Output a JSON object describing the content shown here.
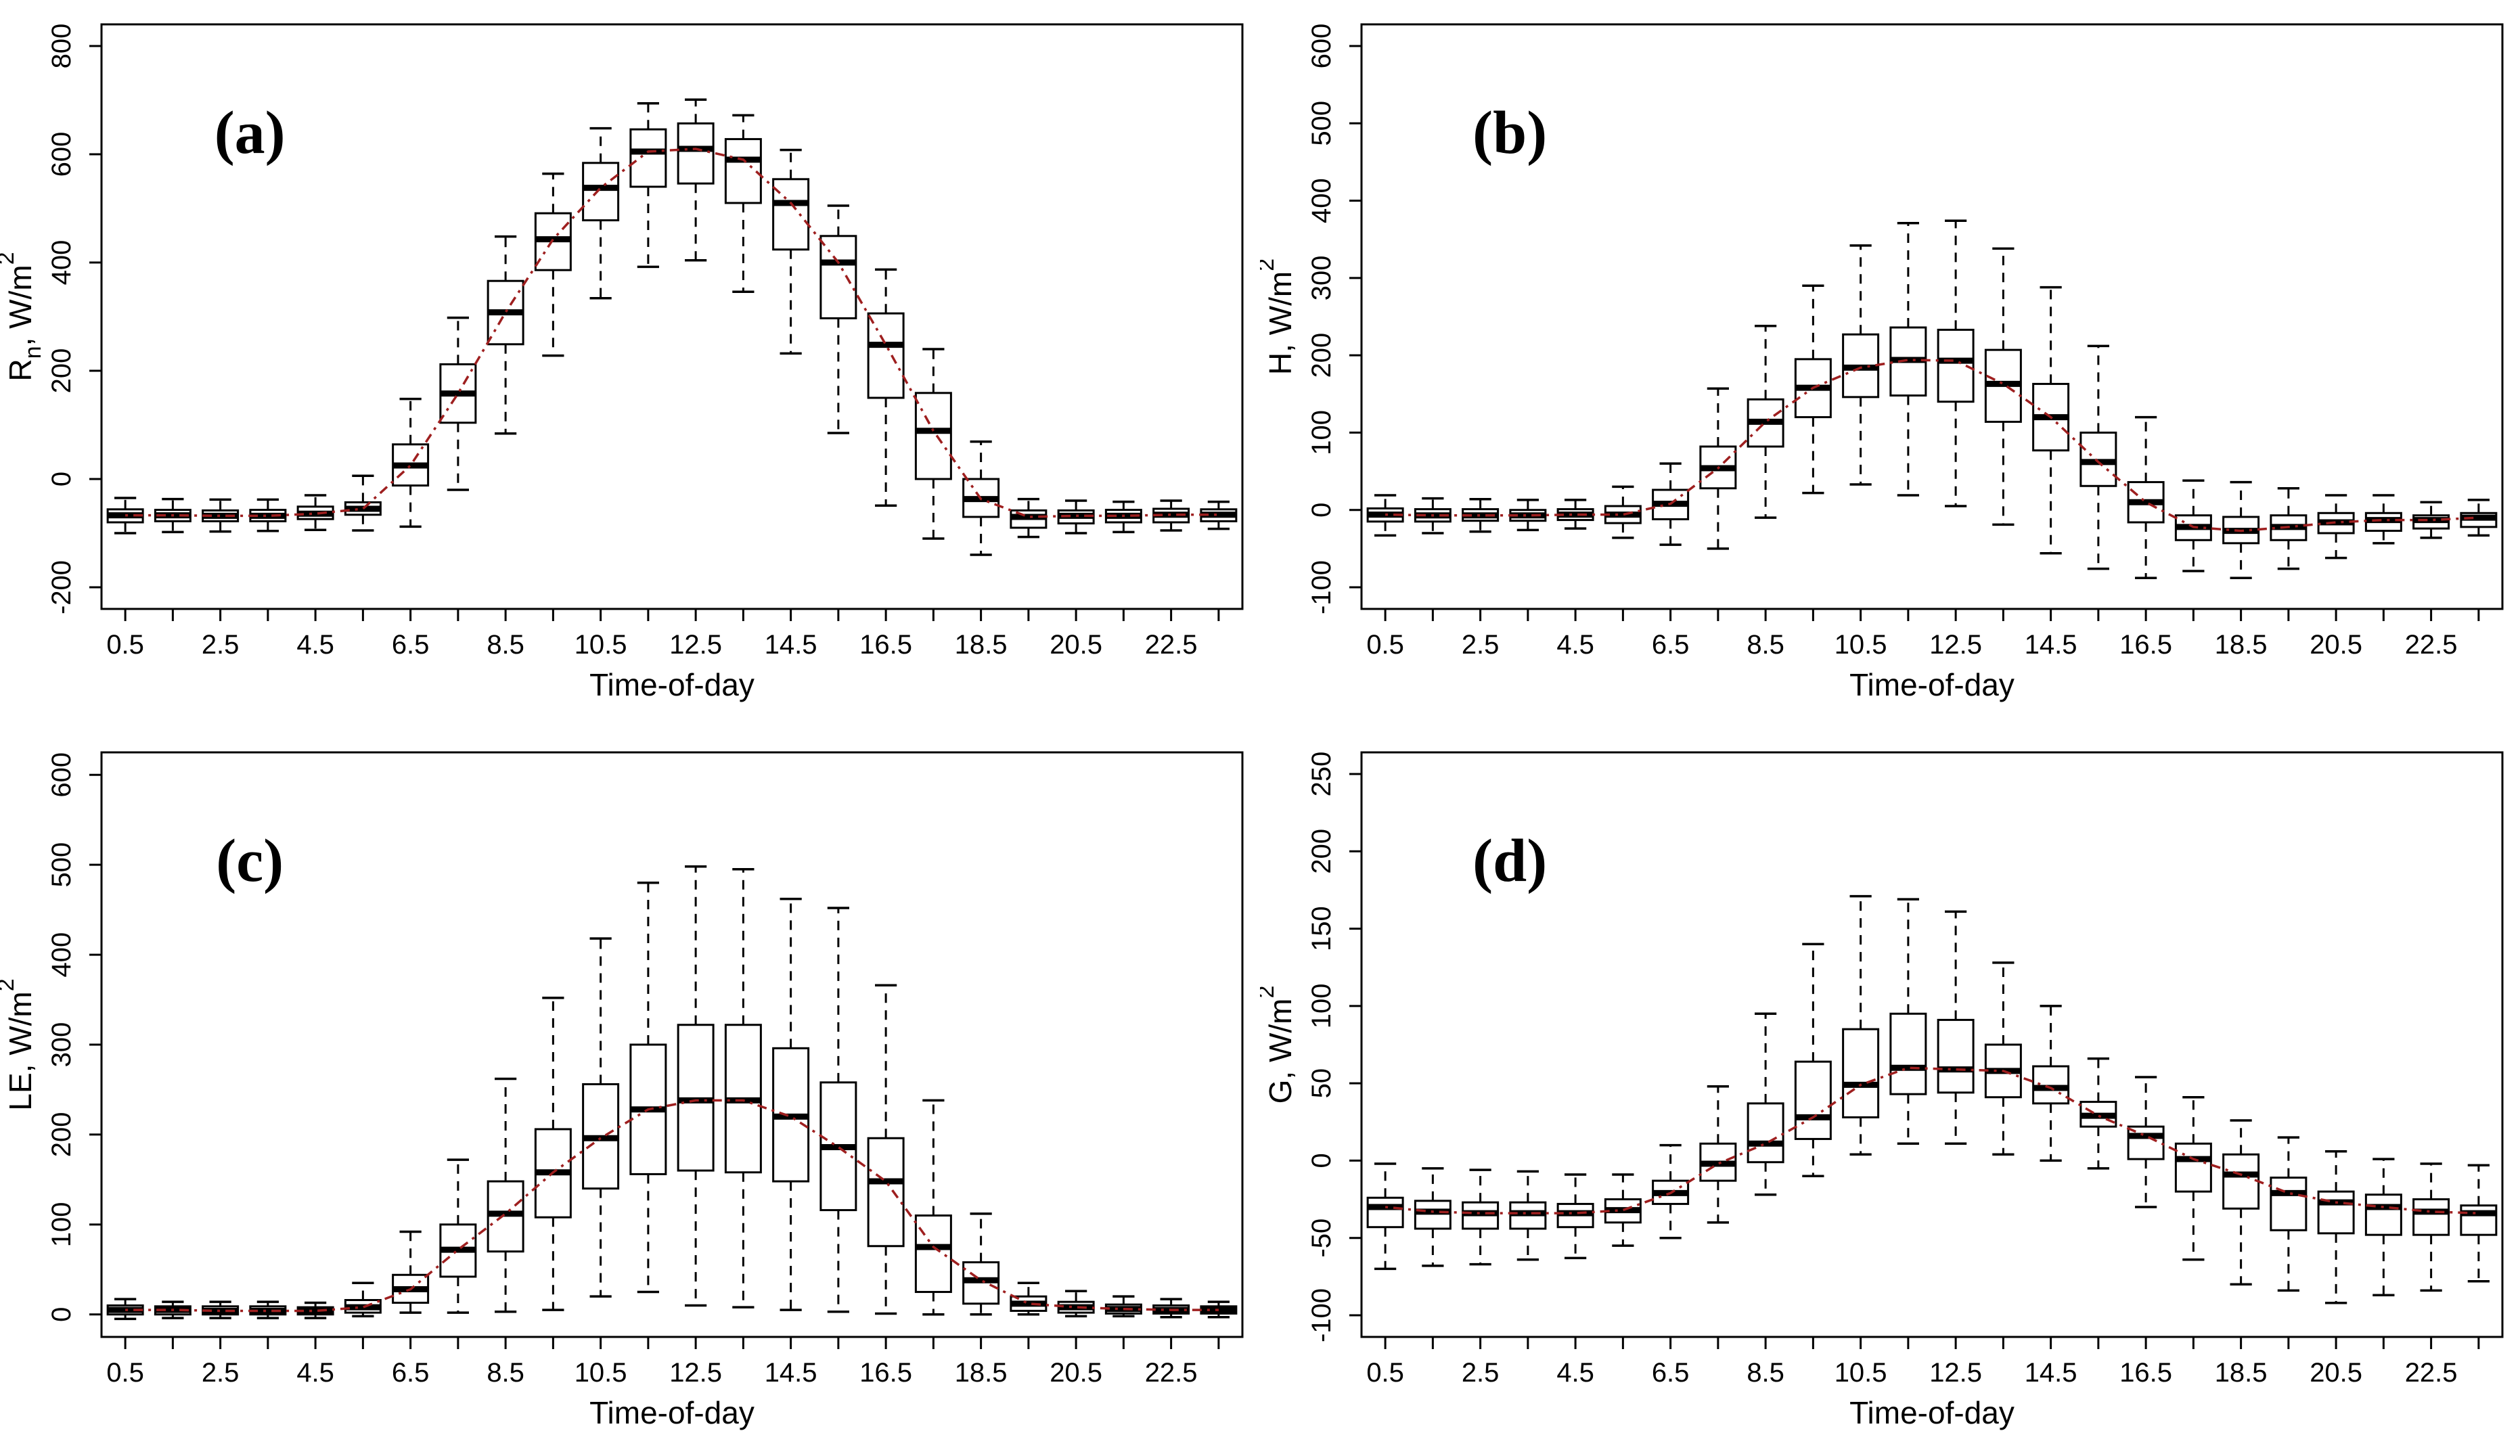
{
  "figure": {
    "background": "#ffffff",
    "xlabel": "Time-of-day",
    "colors": {
      "box_stroke": "#000000",
      "box_fill": "#ffffff",
      "median": "#000000",
      "whisker": "#000000",
      "trend": "#9e1f1f",
      "text": "#000000",
      "axis": "#000000"
    },
    "box_columns": [
      "x",
      "low",
      "q1",
      "median",
      "q3",
      "high"
    ]
  },
  "chart_data": [
    {
      "type": "boxplot",
      "panel_label": "(a)",
      "ylabel_plain": "Rn, W/m2",
      "ylabel_parts": [
        {
          "text": "R",
          "style": "normal"
        },
        {
          "text": "n",
          "style": "sub"
        },
        {
          "text": ", W/m",
          "style": "normal"
        },
        {
          "text": "2",
          "style": "sup"
        }
      ],
      "xlabel": "Time-of-day",
      "ylim": [
        -240,
        840
      ],
      "yticks": [
        -200,
        0,
        200,
        400,
        600,
        800
      ],
      "x_domain": [
        0,
        24
      ],
      "boxes": [
        [
          0.5,
          -100,
          -80,
          -67,
          -56,
          -35
        ],
        [
          1.5,
          -98,
          -78,
          -67,
          -57,
          -37
        ],
        [
          2.5,
          -97,
          -78,
          -68,
          -58,
          -38
        ],
        [
          3.5,
          -96,
          -78,
          -68,
          -57,
          -38
        ],
        [
          4.5,
          -94,
          -74,
          -64,
          -51,
          -30
        ],
        [
          5.5,
          -95,
          -66,
          -55,
          -43,
          6
        ],
        [
          6.5,
          -88,
          -12,
          25,
          64,
          148
        ],
        [
          7.5,
          -20,
          104,
          158,
          212,
          298
        ],
        [
          8.5,
          84,
          249,
          308,
          366,
          448
        ],
        [
          9.5,
          228,
          386,
          443,
          491,
          564
        ],
        [
          10.5,
          334,
          478,
          538,
          584,
          648
        ],
        [
          11.5,
          392,
          540,
          605,
          646,
          694
        ],
        [
          12.5,
          404,
          546,
          610,
          657,
          701
        ],
        [
          13.5,
          346,
          510,
          590,
          628,
          672
        ],
        [
          14.5,
          232,
          424,
          510,
          554,
          608
        ],
        [
          15.5,
          85,
          297,
          400,
          449,
          505
        ],
        [
          16.5,
          -49,
          150,
          248,
          306,
          387
        ],
        [
          17.5,
          -110,
          0,
          89,
          159,
          240
        ],
        [
          18.5,
          -140,
          -70,
          -37,
          0,
          69
        ],
        [
          19.5,
          -107,
          -90,
          -70,
          -58,
          -37
        ],
        [
          20.5,
          -100,
          -82,
          -68,
          -58,
          -40
        ],
        [
          21.5,
          -98,
          -80,
          -68,
          -57,
          -42
        ],
        [
          22.5,
          -95,
          -80,
          -66,
          -55,
          -40
        ],
        [
          23.5,
          -92,
          -78,
          -66,
          -56,
          -42
        ]
      ]
    },
    {
      "type": "boxplot",
      "panel_label": "(b)",
      "ylabel_plain": "H, W/m2",
      "ylabel_parts": [
        {
          "text": "H, W/m",
          "style": "normal"
        },
        {
          "text": "2",
          "style": "sup"
        }
      ],
      "xlabel": "Time-of-day",
      "ylim": [
        -128,
        628
      ],
      "yticks": [
        -100,
        0,
        100,
        200,
        300,
        400,
        500,
        600
      ],
      "x_domain": [
        0,
        24
      ],
      "boxes": [
        [
          0.5,
          -33,
          -15,
          -6,
          2,
          19
        ],
        [
          1.5,
          -30,
          -15,
          -7,
          1,
          15
        ],
        [
          2.5,
          -28,
          -14,
          -7,
          1,
          14
        ],
        [
          3.5,
          -26,
          -14,
          -7,
          0,
          13
        ],
        [
          4.5,
          -24,
          -13,
          -6,
          1,
          13
        ],
        [
          5.5,
          -36,
          -17,
          -6,
          5,
          30
        ],
        [
          6.5,
          -45,
          -12,
          8,
          26,
          60
        ],
        [
          7.5,
          -50,
          28,
          54,
          82,
          157
        ],
        [
          8.5,
          -10,
          82,
          114,
          143,
          238
        ],
        [
          9.5,
          22,
          120,
          158,
          195,
          290
        ],
        [
          10.5,
          33,
          146,
          184,
          227,
          342
        ],
        [
          11.5,
          19,
          148,
          194,
          236,
          371
        ],
        [
          12.5,
          5,
          140,
          193,
          233,
          374
        ],
        [
          13.5,
          -19,
          114,
          163,
          207,
          338
        ],
        [
          14.5,
          -56,
          77,
          120,
          163,
          288
        ],
        [
          15.5,
          -76,
          31,
          62,
          100,
          212
        ],
        [
          16.5,
          -88,
          -16,
          10,
          36,
          120
        ],
        [
          17.5,
          -79,
          -39,
          -22,
          -7,
          38
        ],
        [
          18.5,
          -88,
          -43,
          -27,
          -9,
          36
        ],
        [
          19.5,
          -76,
          -39,
          -22,
          -7,
          28
        ],
        [
          20.5,
          -62,
          -30,
          -16,
          -4,
          19
        ],
        [
          21.5,
          -43,
          -27,
          -13,
          -4,
          19
        ],
        [
          22.5,
          -36,
          -24,
          -13,
          -7,
          10
        ],
        [
          23.5,
          -33,
          -22,
          -10,
          -4,
          13
        ]
      ]
    },
    {
      "type": "boxplot",
      "panel_label": "(c)",
      "ylabel_plain": "LE, W/m2",
      "ylabel_parts": [
        {
          "text": "LE, W/m",
          "style": "normal"
        },
        {
          "text": "2",
          "style": "sup"
        }
      ],
      "xlabel": "Time-of-day",
      "ylim": [
        -25,
        625
      ],
      "yticks": [
        0,
        100,
        200,
        300,
        400,
        500,
        600
      ],
      "x_domain": [
        0,
        24
      ],
      "boxes": [
        [
          0.5,
          -5,
          0,
          5,
          10,
          17
        ],
        [
          1.5,
          -4,
          0,
          5,
          9,
          14
        ],
        [
          2.5,
          -4,
          0,
          4,
          9,
          14
        ],
        [
          3.5,
          -4,
          0,
          4,
          9,
          14
        ],
        [
          4.5,
          -4,
          0,
          4,
          8,
          13
        ],
        [
          5.5,
          -2,
          2,
          8,
          16,
          35
        ],
        [
          6.5,
          2,
          13,
          28,
          44,
          92
        ],
        [
          7.5,
          2,
          42,
          72,
          100,
          172
        ],
        [
          8.5,
          3,
          70,
          112,
          148,
          262
        ],
        [
          9.5,
          5,
          108,
          158,
          206,
          352
        ],
        [
          10.5,
          20,
          140,
          196,
          256,
          418
        ],
        [
          11.5,
          25,
          156,
          228,
          300,
          480
        ],
        [
          12.5,
          10,
          160,
          238,
          322,
          498
        ],
        [
          13.5,
          8,
          158,
          238,
          322,
          495
        ],
        [
          14.5,
          5,
          148,
          220,
          296,
          462
        ],
        [
          15.5,
          3,
          116,
          186,
          258,
          452
        ],
        [
          16.5,
          1,
          76,
          148,
          196,
          366
        ],
        [
          17.5,
          0,
          25,
          75,
          110,
          238
        ],
        [
          18.5,
          0,
          12,
          38,
          58,
          112
        ],
        [
          19.5,
          0,
          4,
          12,
          20,
          35
        ],
        [
          20.5,
          -2,
          2,
          8,
          14,
          26
        ],
        [
          21.5,
          -2,
          1,
          6,
          11,
          20
        ],
        [
          22.5,
          -3,
          1,
          5,
          10,
          17
        ],
        [
          23.5,
          -3,
          1,
          5,
          9,
          14
        ]
      ]
    },
    {
      "type": "boxplot",
      "panel_label": "(d)",
      "ylabel_plain": "G, W/m2",
      "ylabel_parts": [
        {
          "text": "G, W/m",
          "style": "normal"
        },
        {
          "text": "2",
          "style": "sup"
        }
      ],
      "xlabel": "Time-of-day",
      "ylim": [
        -114,
        264
      ],
      "yticks": [
        -100,
        -50,
        0,
        50,
        100,
        150,
        200,
        250
      ],
      "x_domain": [
        0,
        24
      ],
      "boxes": [
        [
          0.5,
          -70,
          -43,
          -30,
          -24,
          -2
        ],
        [
          1.5,
          -68,
          -44,
          -33,
          -26,
          -5
        ],
        [
          2.5,
          -67,
          -44,
          -34,
          -27,
          -6
        ],
        [
          3.5,
          -64,
          -44,
          -34,
          -27,
          -7
        ],
        [
          4.5,
          -63,
          -43,
          -34,
          -28,
          -9
        ],
        [
          5.5,
          -55,
          -40,
          -32,
          -25,
          -9
        ],
        [
          6.5,
          -50,
          -28,
          -21,
          -13,
          10
        ],
        [
          7.5,
          -40,
          -13,
          -2,
          11,
          48
        ],
        [
          8.5,
          -22,
          -1,
          11,
          37,
          95
        ],
        [
          9.5,
          -10,
          14,
          28,
          64,
          140
        ],
        [
          10.5,
          4,
          28,
          49,
          85,
          171
        ],
        [
          11.5,
          11,
          43,
          60,
          95,
          169
        ],
        [
          12.5,
          11,
          44,
          59,
          91,
          161
        ],
        [
          13.5,
          4,
          41,
          58,
          75,
          128
        ],
        [
          14.5,
          0,
          37,
          47,
          61,
          100
        ],
        [
          15.5,
          -5,
          22,
          29,
          38,
          66
        ],
        [
          16.5,
          -30,
          1,
          16,
          22,
          54
        ],
        [
          17.5,
          -64,
          -20,
          1,
          11,
          41
        ],
        [
          18.5,
          -80,
          -31,
          -9,
          4,
          26
        ],
        [
          19.5,
          -84,
          -45,
          -21,
          -11,
          15
        ],
        [
          20.5,
          -92,
          -47,
          -27,
          -20,
          6
        ],
        [
          21.5,
          -87,
          -48,
          -30,
          -22,
          1
        ],
        [
          22.5,
          -84,
          -48,
          -33,
          -25,
          -2
        ],
        [
          23.5,
          -78,
          -48,
          -34,
          -29,
          -3
        ]
      ]
    }
  ]
}
